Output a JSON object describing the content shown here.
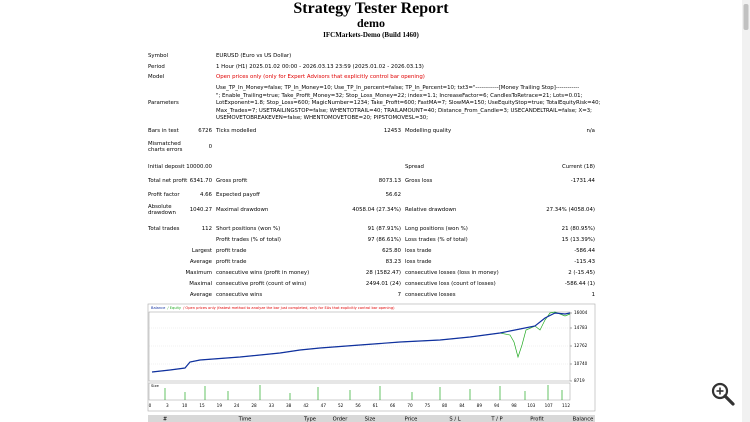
{
  "header": {
    "title": "Strategy Tester Report",
    "subtitle": "demo",
    "server": "IFCMarkets-Demo (Build 1460)"
  },
  "info": [
    {
      "label": "Symbol",
      "value": "EURUSD (Euro vs US Dollar)"
    },
    {
      "label": "Period",
      "value": "1 Hour (H1) 2025.01.02 00:00 - 2026.03.13 23:59 (2025.01.02 - 2026.03.13)"
    },
    {
      "label": "Model",
      "value": "Open prices only (only for Expert Advisors that explicitly control bar opening)"
    }
  ],
  "parameters": {
    "label": "Parameters",
    "lines": [
      "Use_TP_In_Money=false; TP_In_Money=10; Use_TP_In_percent=false; TP_In_Percent=10; txt3=\"------------[Money Trailing Stop]------------",
      "\"; Enable_Trailing=true; Take_Profit_Money=32; Stop_Loss_Money=22; index=1.1; IncreaseFactor=6; CandlesToRetrace=21; Lots=0.01;",
      "LotExponent=1.8; Stop_Loss=600; MagicNumber=1234; Take_Profit=600; FastMA=7; SlowMA=150; UseEquityStop=true; TotalEquityRisk=40;",
      "Max_Trades=7; USETRAILINGSTOP=false; WHENTOTRAIL=40; TRAILAMOUNT=40; Distance_From_Candle=3; USECANDELTRAIL=false; X=3;",
      "USEMOVETOBREAKEVEN=false; WHENTOMOVETOBE=20; PIPSTOMOVESL=30;"
    ]
  },
  "stats": [
    {
      "label1": "Bars in test",
      "value1": "6726",
      "label2": "Ticks modelled",
      "value2": "12453",
      "label3": "Modelling quality",
      "value3": "n/a"
    },
    {
      "label1": "Mismatched charts errors",
      "value1": "0"
    },
    {
      "label1": "Initial deposit",
      "value1": "10000.00",
      "label3": "Spread",
      "value3": "Current (18)"
    },
    {
      "label1": "Total net profit",
      "value1": "6341.70",
      "label2": "Gross profit",
      "value2": "8073.13",
      "label3": "Gross loss",
      "value3": "-1731.44"
    },
    {
      "label1": "Profit factor",
      "value1": "4.66",
      "label2": "Expected payoff",
      "value2": "56.62"
    },
    {
      "label1": "Absolute drawdown",
      "value1": "1040.27",
      "label2": "Maximal drawdown",
      "value2": "4058.04 (27.34%)",
      "label3": "Relative drawdown",
      "value3": "27.34% (4058.04)"
    },
    {
      "label1": "Total trades",
      "value1": "112",
      "label2": "Short positions (won %)",
      "value2": "91 (87.91%)",
      "label3": "Long positions (won %)",
      "value3": "21 (80.95%)"
    },
    {
      "label2": "Profit trades (% of total)",
      "value2": "97 (86.61%)",
      "label3": "Loss trades (% of total)",
      "value3": "15 (13.39%)"
    },
    {
      "prefix": "Largest",
      "label2": "profit trade",
      "value2": "625.80",
      "label3": "loss trade",
      "value3": "-586.44"
    },
    {
      "prefix": "Average",
      "label2": "profit trade",
      "value2": "83.23",
      "label3": "loss trade",
      "value3": "-115.43"
    },
    {
      "prefix": "Maximum",
      "label2": "consecutive wins (profit in money)",
      "value2": "28 (1582.47)",
      "label3": "consecutive losses (loss in money)",
      "value3": "2 (-15.45)"
    },
    {
      "prefix": "Maximal",
      "label2": "consecutive profit (count of wins)",
      "value2": "2494.01 (24)",
      "label3": "consecutive loss (count of losses)",
      "value3": "-586.44 (1)"
    },
    {
      "prefix": "Average",
      "label2": "consecutive wins",
      "value2": "7",
      "label3": "consecutive losses",
      "value3": "1"
    }
  ],
  "chart": {
    "legend": [
      "Balance",
      "/ Equity",
      "/ Open prices only (fastest method to analyze the bar just completed, only for EAs that explicitly control bar opening)"
    ],
    "y_labels": [
      "16004",
      "14783",
      "12762",
      "10740",
      "8719"
    ],
    "size_label": "Size",
    "x_labels": [
      "0",
      "3",
      "10",
      "15",
      "19",
      "24",
      "28",
      "33",
      "38",
      "42",
      "47",
      "52",
      "56",
      "61",
      "66",
      "70",
      "75",
      "80",
      "84",
      "89",
      "94",
      "98",
      "103",
      "107",
      "112"
    ]
  },
  "trades_table": {
    "columns": [
      "#",
      "Time",
      "Type",
      "Order",
      "Size",
      "Price",
      "S / L",
      "T / P",
      "Profit",
      "Balance"
    ]
  }
}
